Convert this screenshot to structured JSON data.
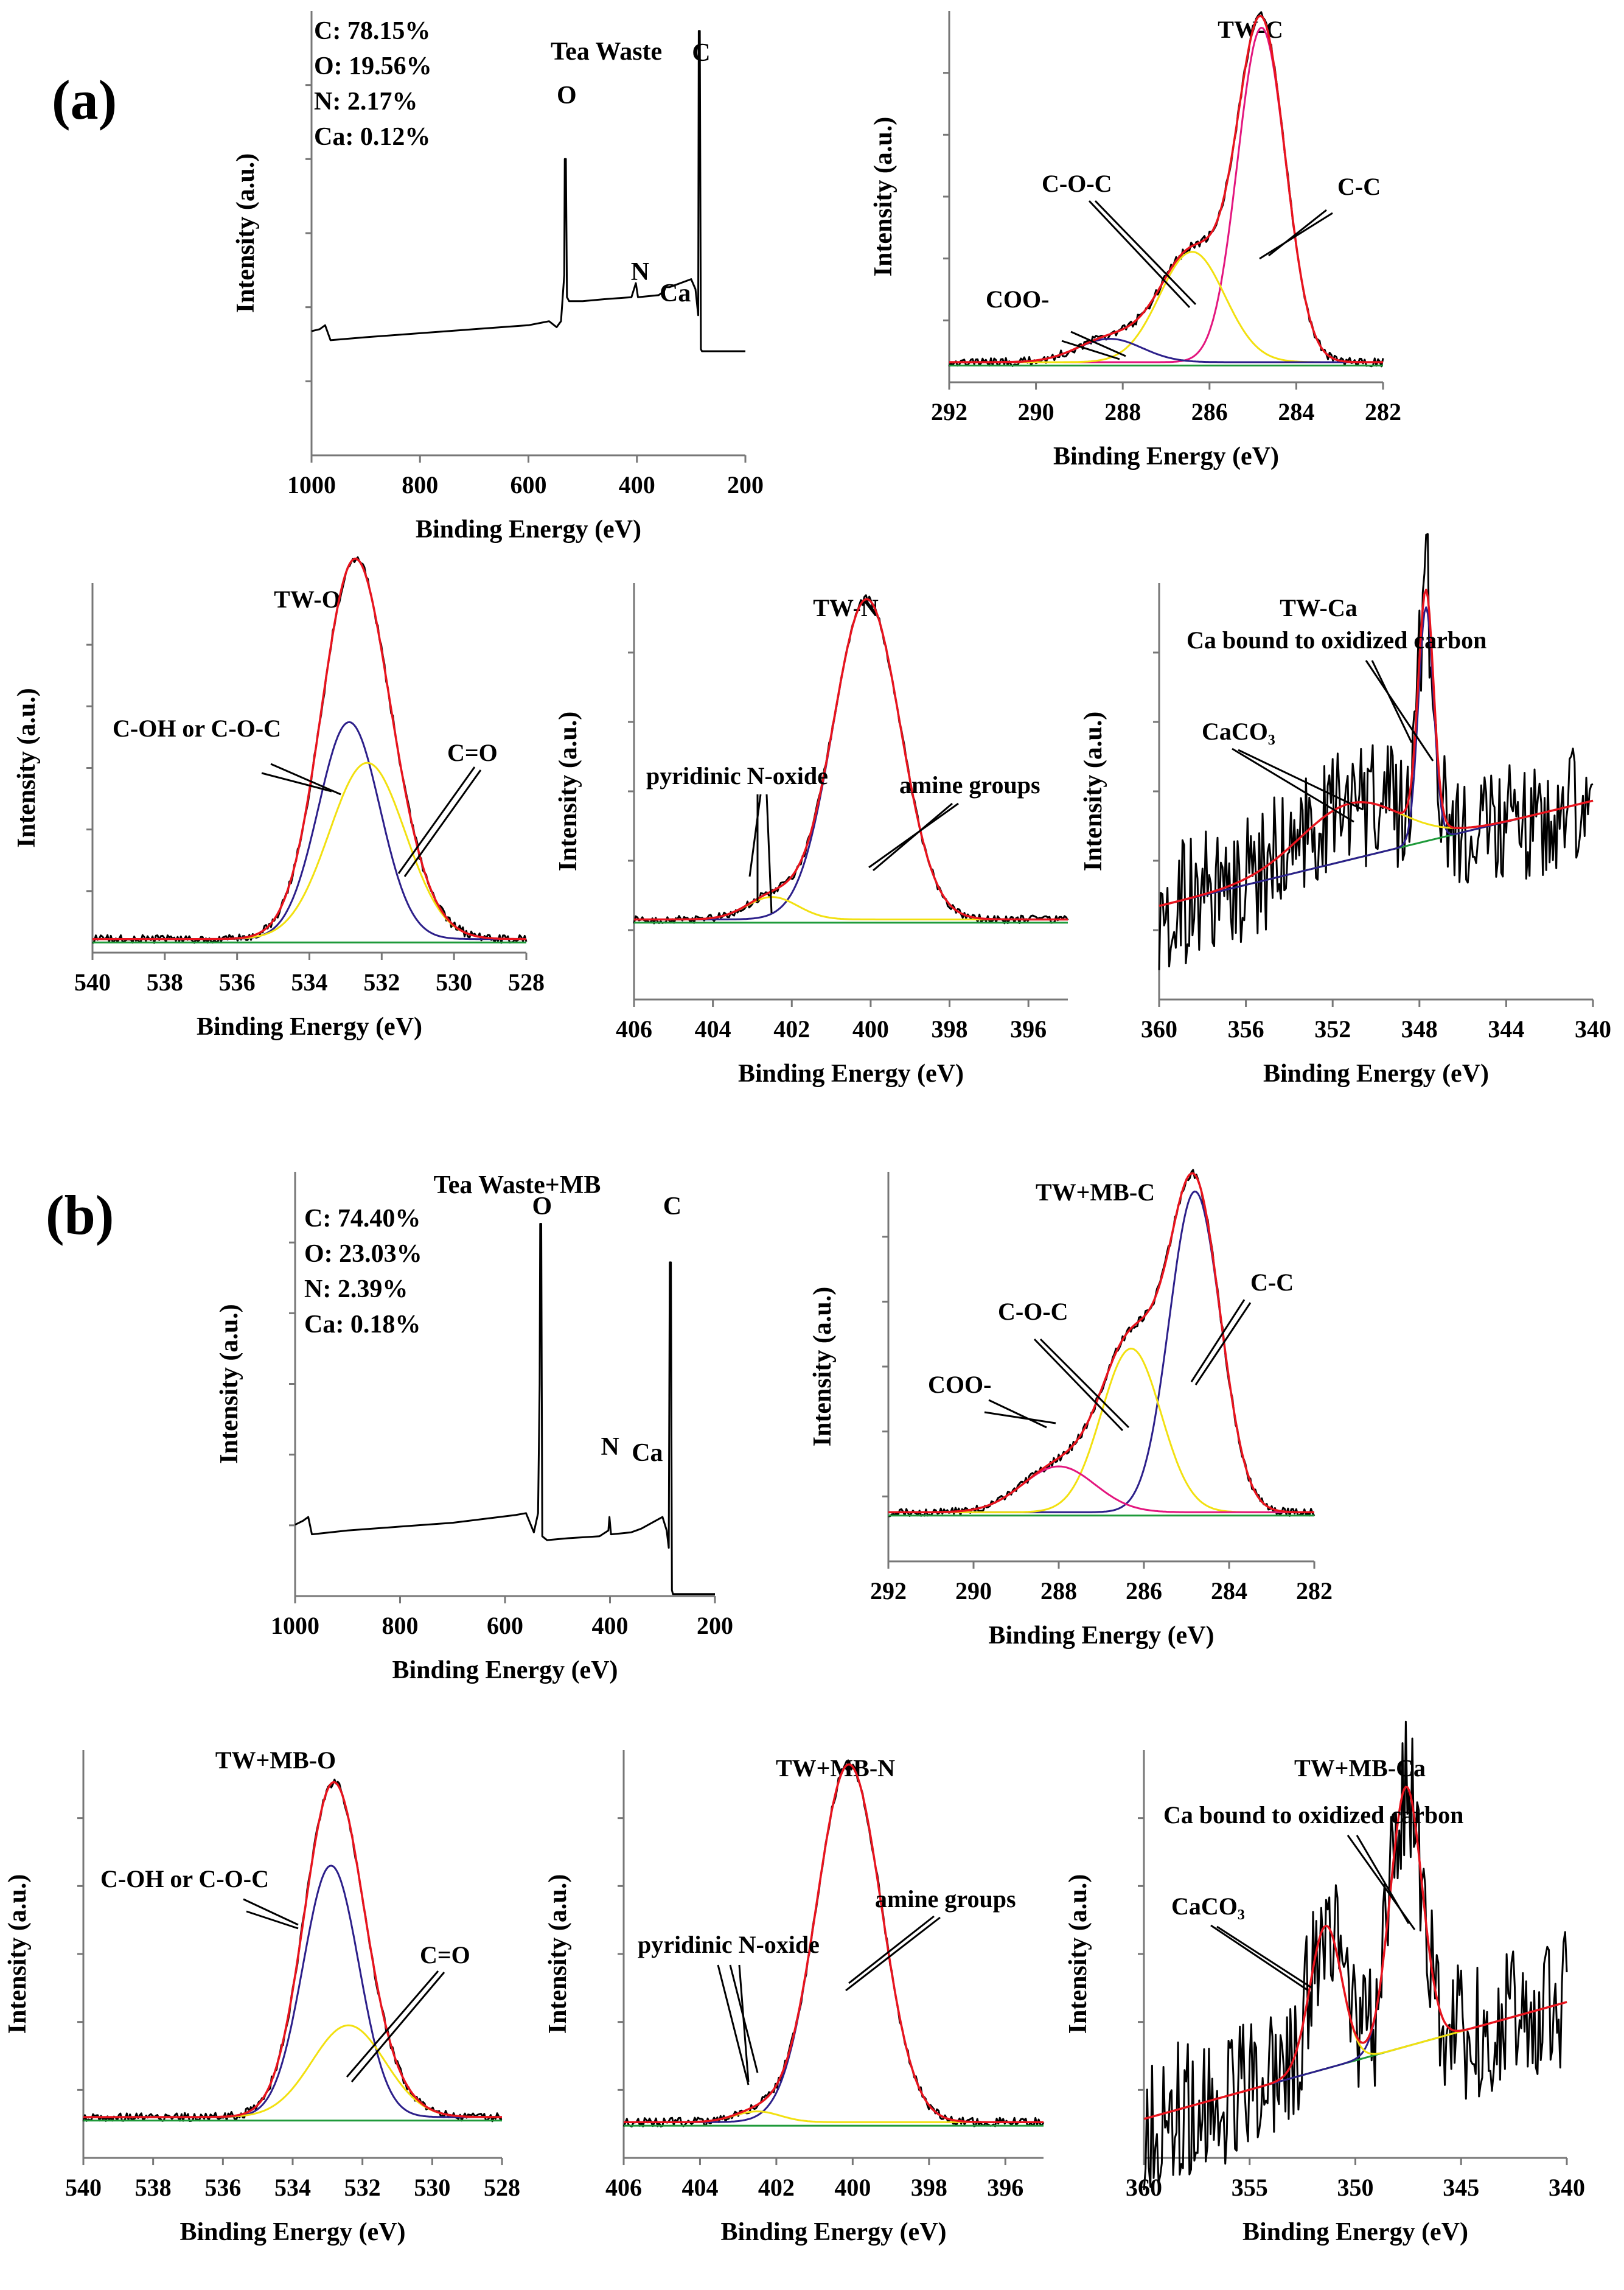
{
  "panel_labels": {
    "a": "(a)",
    "b": "(b)"
  },
  "colors": {
    "data": "#000000",
    "envelope": "#e8141e",
    "yellow": "#f2e010",
    "navy": "#2c1f8a",
    "magenta": "#e3167e",
    "baseline": "#1e9a3a"
  },
  "chart_data": [
    {
      "id": "a-survey",
      "type": "line",
      "ylabel": "Intensity (a.u.)",
      "xlabel": "Binding Energy (eV)",
      "xlim": [
        1000,
        200
      ],
      "xticks": [
        1000,
        800,
        600,
        400,
        200
      ],
      "title": "Tea Waste",
      "composition": [
        "C: 78.15%",
        "O: 19.56%",
        "N:  2.17%",
        "Ca: 0.12%"
      ],
      "peak_labels": [
        {
          "text": "O",
          "x": 531
        },
        {
          "text": "N",
          "x": 400
        },
        {
          "text": "Ca",
          "x": 347
        },
        {
          "text": "C",
          "x": 285
        }
      ],
      "series": [
        {
          "name": "survey",
          "color": "data",
          "points": [
            [
              1000,
              0.12
            ],
            [
              985,
              0.13
            ],
            [
              975,
              0.15
            ],
            [
              965,
              0.075
            ],
            [
              900,
              0.09
            ],
            [
              800,
              0.11
            ],
            [
              700,
              0.13
            ],
            [
              600,
              0.15
            ],
            [
              562,
              0.17
            ],
            [
              548,
              0.14
            ],
            [
              540,
              0.17
            ],
            [
              534,
              0.4
            ],
            [
              533,
              0.98
            ],
            [
              531,
              0.98
            ],
            [
              529,
              0.29
            ],
            [
              525,
              0.27
            ],
            [
              500,
              0.27
            ],
            [
              460,
              0.28
            ],
            [
              410,
              0.29
            ],
            [
              402,
              0.36
            ],
            [
              398,
              0.29
            ],
            [
              360,
              0.3
            ],
            [
              350,
              0.32
            ],
            [
              347,
              0.34
            ],
            [
              340,
              0.34
            ],
            [
              300,
              0.38
            ],
            [
              292,
              0.33
            ],
            [
              287,
              0.2
            ],
            [
              286,
              1.62
            ],
            [
              284,
              1.62
            ],
            [
              282,
              0.03
            ],
            [
              280,
              0.02
            ],
            [
              200,
              0.02
            ]
          ]
        }
      ]
    },
    {
      "id": "a-TW-C",
      "type": "line",
      "title": "TW-C",
      "ylabel": "Intensity (a.u.)",
      "xlabel": "Binding Energy (eV)",
      "xlim": [
        292,
        282
      ],
      "xticks": [
        292,
        290,
        288,
        286,
        284,
        282
      ],
      "components": [
        {
          "label": "C-C",
          "center": 284.8,
          "height": 1.0,
          "sigma": 0.55
        },
        {
          "label": "C-O-C",
          "center": 286.4,
          "height": 0.33,
          "sigma": 0.75
        },
        {
          "label": "COO-",
          "center": 288.3,
          "height": 0.07,
          "sigma": 0.75
        }
      ],
      "annotations": [
        "COO-",
        "C-O-C",
        "C-C"
      ]
    },
    {
      "id": "a-TW-O",
      "type": "line",
      "title": "TW-O",
      "ylabel": "Intensity (a.u.)",
      "xlabel": "Binding Energy (eV)",
      "xlim": [
        540,
        528
      ],
      "xticks": [
        540,
        538,
        536,
        534,
        532,
        530,
        528
      ],
      "components": [
        {
          "label": "C-OH or C-O-C",
          "center": 532.9,
          "height": 0.64,
          "sigma": 0.85
        },
        {
          "label": "C=O",
          "center": 532.4,
          "height": 0.52,
          "sigma": 1.05
        }
      ],
      "annotations": [
        "C-OH or C-O-C",
        "C=O"
      ]
    },
    {
      "id": "a-TW-N",
      "type": "line",
      "title": "TW-N",
      "ylabel": "Intensity (a.u.)",
      "xlabel": "Binding Energy (eV)",
      "xlim": [
        406,
        395
      ],
      "xticks": [
        406,
        404,
        402,
        400,
        398,
        396
      ],
      "components": [
        {
          "label": "amine groups",
          "center": 400.1,
          "height": 1.0,
          "sigma": 0.85
        },
        {
          "label": "pyridinic N-oxide",
          "center": 402.5,
          "height": 0.07,
          "sigma": 0.65
        }
      ],
      "annotations": [
        "pyridinic N-oxide",
        "amine groups"
      ]
    },
    {
      "id": "a-TW-Ca",
      "type": "line",
      "title": "TW-Ca",
      "ylabel": "Intensity (a.u.)",
      "xlabel": "Binding Energy (eV)",
      "xlim": [
        360,
        340
      ],
      "xticks": [
        360,
        356,
        352,
        348,
        344,
        340
      ],
      "components": [
        {
          "label": "Ca bound to oxidized carbon",
          "center": 347.7,
          "height": 1.0,
          "sigma": 0.35
        },
        {
          "label": "CaCO3",
          "center": 351.2,
          "height": 0.24,
          "sigma": 2.3
        }
      ],
      "annotations": [
        "Ca bound to oxidized carbon",
        "CaCO3"
      ]
    },
    {
      "id": "b-survey",
      "type": "line",
      "ylabel": "Intensity (a.u.)",
      "xlabel": "Binding Energy (eV)",
      "xlim": [
        1000,
        200
      ],
      "xticks": [
        1000,
        800,
        600,
        400,
        200
      ],
      "title": "Tea Waste+MB",
      "composition": [
        "C: 74.40%",
        "O: 23.03%",
        "N:  2.39%",
        "Ca: 0.18%"
      ],
      "peak_labels": [
        {
          "text": "O",
          "x": 531
        },
        {
          "text": "N",
          "x": 400
        },
        {
          "text": "Ca",
          "x": 347
        },
        {
          "text": "C",
          "x": 285
        }
      ],
      "series": [
        {
          "name": "survey",
          "color": "data",
          "points": [
            [
              1000,
              0.12
            ],
            [
              985,
              0.14
            ],
            [
              975,
              0.16
            ],
            [
              968,
              0.07
            ],
            [
              900,
              0.09
            ],
            [
              800,
              0.11
            ],
            [
              700,
              0.13
            ],
            [
              580,
              0.17
            ],
            [
              560,
              0.18
            ],
            [
              545,
              0.08
            ],
            [
              537,
              0.18
            ],
            [
              534,
              0.85
            ],
            [
              533,
              1.68
            ],
            [
              531,
              1.68
            ],
            [
              529,
              0.06
            ],
            [
              520,
              0.04
            ],
            [
              480,
              0.05
            ],
            [
              420,
              0.06
            ],
            [
              403,
              0.09
            ],
            [
              401,
              0.16
            ],
            [
              398,
              0.07
            ],
            [
              360,
              0.08
            ],
            [
              350,
              0.09
            ],
            [
              340,
              0.1
            ],
            [
              300,
              0.16
            ],
            [
              292,
              0.09
            ],
            [
              288,
              0.0
            ],
            [
              286,
              1.48
            ],
            [
              284,
              1.48
            ],
            [
              282,
              -0.22
            ],
            [
              280,
              -0.24
            ],
            [
              200,
              -0.24
            ]
          ]
        }
      ]
    },
    {
      "id": "b-TW+MB-C",
      "type": "line",
      "title": "TW+MB-C",
      "ylabel": "Intensity (a.u.)",
      "xlabel": "Binding Energy (eV)",
      "xlim": [
        292,
        282
      ],
      "xticks": [
        292,
        290,
        288,
        286,
        284,
        282
      ],
      "components": [
        {
          "label": "C-C",
          "center": 284.8,
          "height": 0.98,
          "sigma": 0.6
        },
        {
          "label": "C-O-C",
          "center": 286.3,
          "height": 0.5,
          "sigma": 0.7
        },
        {
          "label": "COO-",
          "center": 288.0,
          "height": 0.14,
          "sigma": 0.85
        }
      ],
      "annotations": [
        "COO-",
        "C-O-C",
        "C-C"
      ]
    },
    {
      "id": "b-TW+MB-O",
      "type": "line",
      "title": "TW+MB-O",
      "ylabel": "Intensity (a.u.)",
      "xlabel": "Binding Energy (eV)",
      "xlim": [
        540,
        528
      ],
      "xticks": [
        540,
        538,
        536,
        534,
        532,
        530,
        528
      ],
      "components": [
        {
          "label": "C-OH or C-O-C",
          "center": 532.9,
          "height": 0.74,
          "sigma": 0.8
        },
        {
          "label": "C=O",
          "center": 532.4,
          "height": 0.27,
          "sigma": 1.05
        }
      ],
      "annotations": [
        "C-OH or C-O-C",
        "C=O"
      ]
    },
    {
      "id": "b-TW+MB-N",
      "type": "line",
      "title": "TW+MB-N",
      "ylabel": "Intensity (a.u.)",
      "xlabel": "Binding Energy (eV)",
      "xlim": [
        406,
        395
      ],
      "xticks": [
        406,
        404,
        402,
        400,
        398,
        396
      ],
      "components": [
        {
          "label": "amine groups",
          "center": 400.1,
          "height": 1.0,
          "sigma": 0.85
        },
        {
          "label": "pyridinic N-oxide",
          "center": 402.5,
          "height": 0.03,
          "sigma": 0.6
        }
      ],
      "annotations": [
        "pyridinic N-oxide",
        "amine groups"
      ]
    },
    {
      "id": "b-TW+MB-Ca",
      "type": "line",
      "title": "TW+MB-Ca",
      "ylabel": "Intensity (a.u.)",
      "xlabel": "Binding Energy (eV)",
      "xlim": [
        360,
        340
      ],
      "xticks": [
        360,
        355,
        350,
        345,
        340
      ],
      "components": [
        {
          "label": "Ca bound to oxidized carbon",
          "center": 347.6,
          "height": 1.0,
          "sigma": 0.75
        },
        {
          "label": "CaCO3",
          "center": 351.4,
          "height": 0.55,
          "sigma": 0.75
        }
      ],
      "annotations": [
        "Ca bound to oxidized carbon",
        "CaCO3"
      ]
    }
  ]
}
